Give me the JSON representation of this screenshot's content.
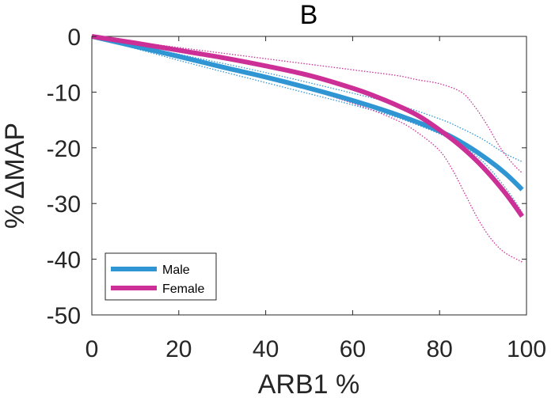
{
  "chart_data": {
    "type": "line",
    "title": "B",
    "xlabel": "ARB1 %",
    "ylabel": "% ΔMAP",
    "xlim": [
      0,
      100
    ],
    "ylim": [
      -50,
      0
    ],
    "xticks": [
      0,
      20,
      40,
      60,
      80,
      100
    ],
    "yticks": [
      0,
      -10,
      -20,
      -30,
      -40,
      -50
    ],
    "grid": false,
    "legend_position": "bottom-left",
    "series": [
      {
        "name": "Male",
        "color": "#2f95d3",
        "style": "solid",
        "x": [
          0,
          10,
          20,
          30,
          40,
          50,
          60,
          70,
          80,
          85,
          90,
          95,
          99
        ],
        "y": [
          0,
          -1.8,
          -3.6,
          -5.5,
          -7.3,
          -9.3,
          -11.5,
          -14,
          -17,
          -19,
          -21.5,
          -24.5,
          -27.5
        ]
      },
      {
        "name": "Female",
        "color": "#cc2f96",
        "style": "solid",
        "x": [
          0,
          10,
          20,
          30,
          40,
          50,
          60,
          65,
          70,
          75,
          80,
          85,
          90,
          95,
          99
        ],
        "y": [
          0,
          -1.2,
          -2.5,
          -3.8,
          -5.3,
          -7,
          -9.3,
          -10.7,
          -12.3,
          -14.2,
          -16.8,
          -19.8,
          -23.5,
          -28,
          -32.3
        ]
      },
      {
        "color": "#2f95d3",
        "style": "dotted",
        "x": [
          0,
          20,
          40,
          60,
          70,
          80,
          85,
          90,
          95,
          99
        ],
        "y": [
          0,
          -3.2,
          -6.5,
          -10.2,
          -12.2,
          -14.8,
          -16.5,
          -18.5,
          -21,
          -22.5
        ]
      },
      {
        "color": "#2f95d3",
        "style": "dotted",
        "x": [
          0,
          20,
          40,
          60,
          70,
          80,
          85,
          90,
          95,
          99
        ],
        "y": [
          0,
          -4.3,
          -8.3,
          -12.3,
          -14.5,
          -17.5,
          -19.5,
          -22.5,
          -27,
          -31.5
        ]
      },
      {
        "color": "#cc2f96",
        "style": "dotted",
        "x": [
          0,
          20,
          40,
          60,
          70,
          75,
          80,
          85,
          88,
          91,
          94,
          97,
          99
        ],
        "y": [
          0,
          -2,
          -4,
          -6,
          -7,
          -7.8,
          -8.5,
          -10,
          -12.5,
          -16,
          -20,
          -23,
          -24.5
        ]
      },
      {
        "color": "#cc2f96",
        "style": "dotted",
        "x": [
          0,
          20,
          40,
          60,
          70,
          75,
          80,
          83,
          86,
          89,
          92,
          95,
          99
        ],
        "y": [
          0,
          -3.5,
          -7.2,
          -12,
          -15,
          -17.3,
          -20.5,
          -24,
          -28.5,
          -33,
          -36.5,
          -38.8,
          -40.5
        ]
      }
    ]
  }
}
